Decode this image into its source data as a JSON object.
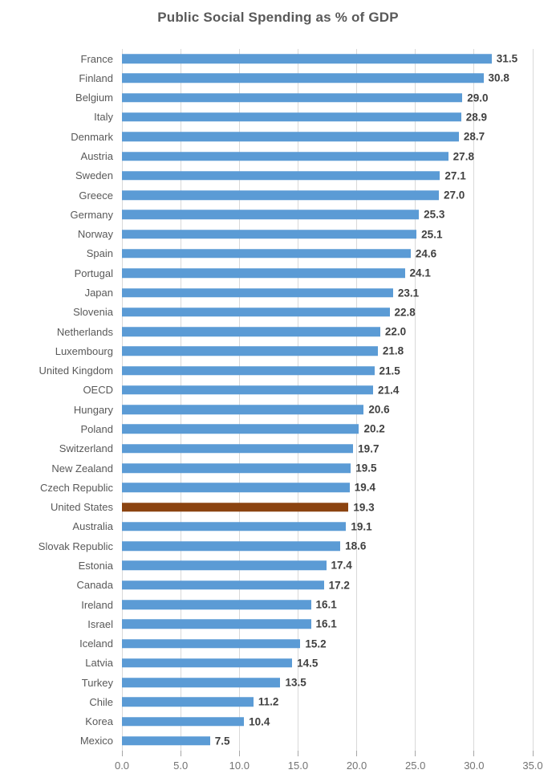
{
  "chart_data": {
    "type": "bar",
    "orientation": "horizontal",
    "title": "Public Social Spending as % of GDP",
    "categories": [
      "France",
      "Finland",
      "Belgium",
      "Italy",
      "Denmark",
      "Austria",
      "Sweden",
      "Greece",
      "Germany",
      "Norway",
      "Spain",
      "Portugal",
      "Japan",
      "Slovenia",
      "Netherlands",
      "Luxembourg",
      "United Kingdom",
      "OECD",
      "Hungary",
      "Poland",
      "Switzerland",
      "New Zealand",
      "Czech Republic",
      "United States",
      "Australia",
      "Slovak Republic",
      "Estonia",
      "Canada",
      "Ireland",
      "Israel",
      "Iceland",
      "Latvia",
      "Turkey",
      "Chile",
      "Korea",
      "Mexico"
    ],
    "values": [
      31.5,
      30.8,
      29.0,
      28.9,
      28.7,
      27.8,
      27.1,
      27.0,
      25.3,
      25.1,
      24.6,
      24.1,
      23.1,
      22.8,
      22.0,
      21.8,
      21.5,
      21.4,
      20.6,
      20.2,
      19.7,
      19.5,
      19.4,
      19.3,
      19.1,
      18.6,
      17.4,
      17.2,
      16.1,
      16.1,
      15.2,
      14.5,
      13.5,
      11.2,
      10.4,
      7.5
    ],
    "highlight": {
      "category": "United States",
      "index": 23,
      "color": "#8B4310"
    },
    "bar_color": "#5B9BD5",
    "xlim": [
      0,
      35
    ],
    "x_ticks": [
      0,
      5,
      10,
      15,
      20,
      25,
      30,
      35
    ],
    "x_tick_labels": [
      "0.0",
      "5.0",
      "10.0",
      "15.0",
      "20.0",
      "25.0",
      "30.0",
      "35.0"
    ],
    "grid": true,
    "legend": "none",
    "data_labels": "outside_end",
    "colors": {
      "title_text": "#595959",
      "category_text": "#595959",
      "value_text": "#404040",
      "axis_text": "#737373",
      "gridline": "#D9D9D9",
      "tick": "#A6A6A6",
      "background": "#FFFFFF"
    }
  }
}
